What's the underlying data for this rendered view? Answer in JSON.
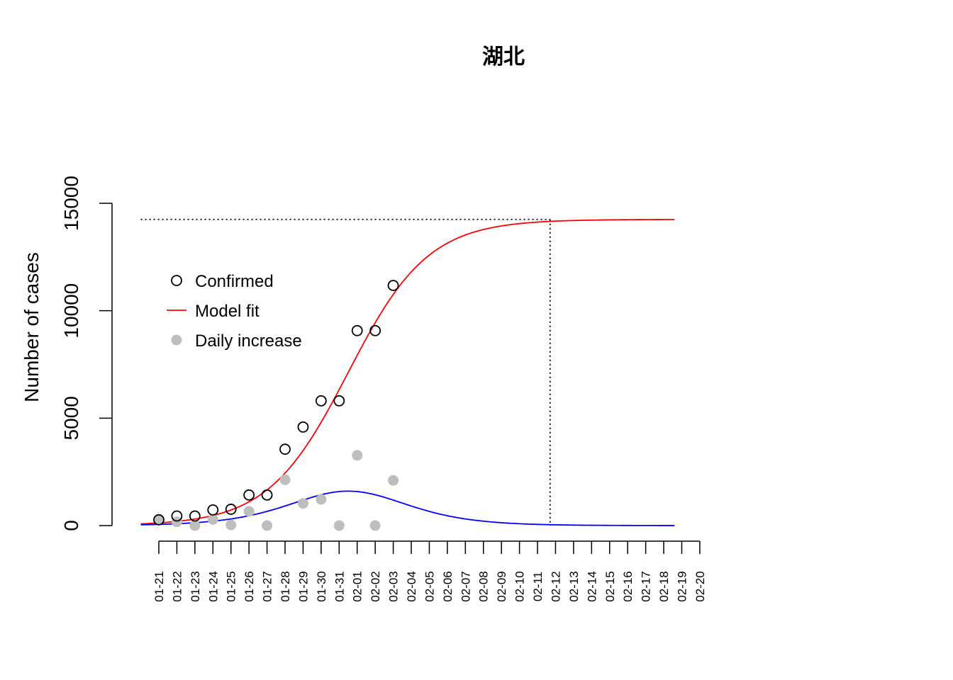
{
  "chart_data": {
    "type": "scatter",
    "title": "湖北",
    "ylabel": "Number of cases",
    "xlabel": "",
    "ylim": [
      0,
      15000
    ],
    "yticks": [
      0,
      5000,
      10000,
      15000
    ],
    "categories": [
      "01-21",
      "01-22",
      "01-23",
      "01-24",
      "01-25",
      "01-26",
      "01-27",
      "01-28",
      "01-29",
      "01-30",
      "01-31",
      "02-01",
      "02-02",
      "02-03",
      "02-04",
      "02-05",
      "02-06",
      "02-07",
      "02-08",
      "02-09",
      "02-10",
      "02-11",
      "02-12",
      "02-13",
      "02-14",
      "02-15",
      "02-16",
      "02-17",
      "02-18",
      "02-19",
      "02-20"
    ],
    "legend_position": "top-left",
    "series": [
      {
        "name": "Confirmed",
        "style": "open-circle",
        "color": "#000000",
        "values": [
          270,
          444,
          444,
          729,
          761,
          1423,
          1423,
          3554,
          4586,
          5806,
          5806,
          9074,
          9074,
          11177
        ]
      },
      {
        "name": "Model fit",
        "style": "line",
        "color": "#ff0000",
        "logistic": {
          "K": 14250,
          "r": 0.45,
          "t0": 10.5
        },
        "x_range": [
          -1.0,
          28.6
        ]
      },
      {
        "name": "Daily increase",
        "style": "filled-circle",
        "color": "#bebebe",
        "values": [
          270,
          174,
          0,
          285,
          32,
          662,
          0,
          2131,
          1032,
          1220,
          0,
          3268,
          0,
          2103
        ]
      },
      {
        "style": "line",
        "color": "#0000ff",
        "derived_from": "Model fit",
        "x_range": [
          -1.0,
          28.6
        ]
      }
    ],
    "reference_lines": {
      "style": "dotted",
      "color": "#000000",
      "plateau_y": 14250,
      "plateau_date_index": 21.7
    }
  }
}
